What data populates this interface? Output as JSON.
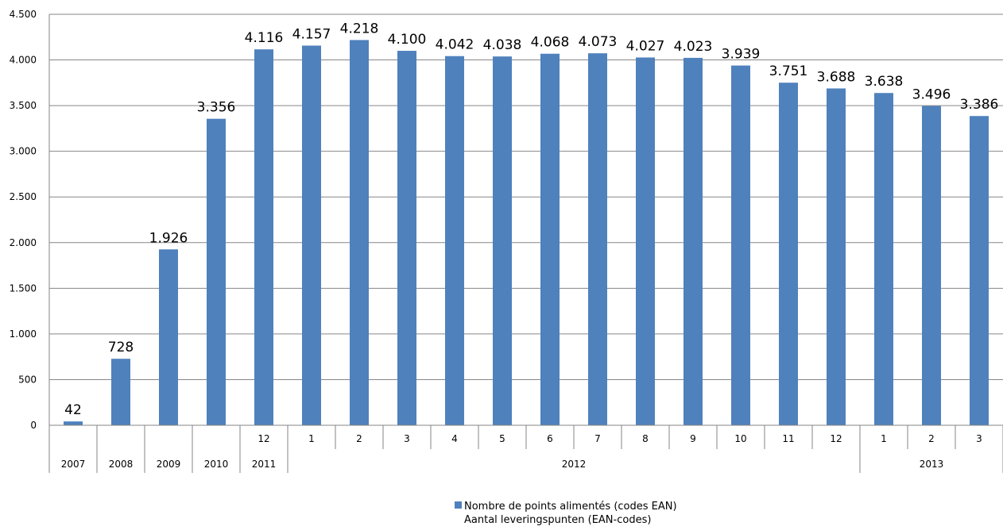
{
  "chart_data": {
    "type": "bar",
    "categories": [
      {
        "month": "",
        "year": "2007"
      },
      {
        "month": "",
        "year": "2008"
      },
      {
        "month": "",
        "year": "2009"
      },
      {
        "month": "",
        "year": "2010"
      },
      {
        "month": "12",
        "year": "2011"
      },
      {
        "month": "1",
        "year": "2012"
      },
      {
        "month": "2",
        "year": "2012"
      },
      {
        "month": "3",
        "year": "2012"
      },
      {
        "month": "4",
        "year": "2012"
      },
      {
        "month": "5",
        "year": "2012"
      },
      {
        "month": "6",
        "year": "2012"
      },
      {
        "month": "7",
        "year": "2012"
      },
      {
        "month": "8",
        "year": "2012"
      },
      {
        "month": "9",
        "year": "2012"
      },
      {
        "month": "10",
        "year": "2012"
      },
      {
        "month": "11",
        "year": "2012"
      },
      {
        "month": "12",
        "year": "2012"
      },
      {
        "month": "1",
        "year": "2013"
      },
      {
        "month": "2",
        "year": "2013"
      },
      {
        "month": "3",
        "year": "2013"
      }
    ],
    "values": [
      42,
      728,
      1926,
      3356,
      4116,
      4157,
      4218,
      4100,
      4042,
      4038,
      4068,
      4073,
      4027,
      4023,
      3939,
      3751,
      3688,
      3638,
      3496,
      3386
    ],
    "value_labels": [
      "42",
      "728",
      "1.926",
      "3.356",
      "4.116",
      "4.157",
      "4.218",
      "4.100",
      "4.042",
      "4.038",
      "4.068",
      "4.073",
      "4.027",
      "4.023",
      "3.939",
      "3.751",
      "3.688",
      "3.638",
      "3.496",
      "3.386"
    ],
    "year_groups": [
      {
        "label": "2007",
        "start": 0,
        "end": 0
      },
      {
        "label": "2008",
        "start": 1,
        "end": 1
      },
      {
        "label": "2009",
        "start": 2,
        "end": 2
      },
      {
        "label": "2010",
        "start": 3,
        "end": 3
      },
      {
        "label": "2011",
        "start": 4,
        "end": 4
      },
      {
        "label": "2012",
        "start": 5,
        "end": 16
      },
      {
        "label": "2013",
        "start": 17,
        "end": 19
      }
    ],
    "y_ticks": [
      0,
      500,
      1000,
      1500,
      2000,
      2500,
      3000,
      3500,
      4000,
      4500
    ],
    "y_tick_labels": [
      "0",
      "500",
      "1.000",
      "1.500",
      "2.000",
      "2.500",
      "3.000",
      "3.500",
      "4.000",
      "4.500"
    ],
    "ylim": [
      0,
      4500
    ],
    "grid": true,
    "series_name": [
      "Nombre de points alimentés (codes EAN)",
      "Aantal leveringspunten (EAN-codes)"
    ],
    "legend_position": "bottom",
    "colors": {
      "bar": "#4F81BD",
      "grid": "#868686",
      "axis": "#868686"
    }
  }
}
